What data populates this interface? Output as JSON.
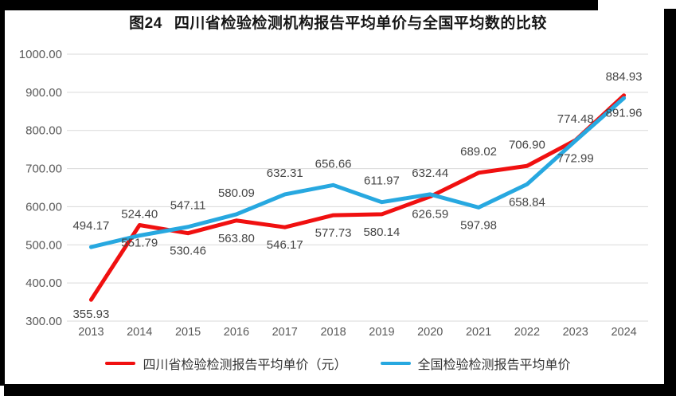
{
  "header": {
    "title_prefix": "图24",
    "title": "四川省检验检测机构报告平均单价与全国平均数的比较"
  },
  "colors": {
    "sichuan_line": "#f01010",
    "national_line": "#27a8e0",
    "gridline": "#d9d9d9",
    "axis_text": "#595959",
    "data_label_text": "#454545",
    "frame": "#000000",
    "title_text": "#161616"
  },
  "chart_data": {
    "type": "line",
    "title": "图24 四川省检验检测机构报告平均单价与全国平均数的比较",
    "categories": [
      "2013",
      "2014",
      "2015",
      "2016",
      "2017",
      "2018",
      "2019",
      "2020",
      "2021",
      "2022",
      "2023",
      "2024"
    ],
    "series": [
      {
        "name": "四川省检验检测报告平均单价（元）",
        "color": "#f01010",
        "values": [
          355.93,
          551.79,
          530.46,
          563.8,
          546.17,
          577.73,
          580.14,
          626.59,
          689.02,
          706.9,
          774.48,
          891.96
        ],
        "label_placement": [
          "below",
          "below",
          "below",
          "below",
          "below",
          "below",
          "below",
          "below",
          "above",
          "above",
          "above",
          "below"
        ]
      },
      {
        "name": "全国检验检测报告平均单价",
        "color": "#27a8e0",
        "values": [
          494.17,
          524.4,
          547.11,
          580.09,
          632.31,
          656.66,
          611.97,
          632.44,
          597.98,
          658.84,
          772.99,
          884.93
        ],
        "label_placement": [
          "above",
          "above",
          "above",
          "above",
          "above",
          "above",
          "above",
          "above",
          "below",
          "below",
          "below",
          "above"
        ]
      }
    ],
    "xlabel": "",
    "ylabel": "",
    "ylim": [
      300,
      1000
    ],
    "y_tick_step": 100,
    "y_tick_labels": [
      "300.00",
      "400.00",
      "500.00",
      "600.00",
      "700.00",
      "800.00",
      "900.00",
      "1000.00"
    ],
    "grid": true,
    "data_labels": true,
    "data_label_decimals": 2,
    "legend_position": "bottom"
  }
}
